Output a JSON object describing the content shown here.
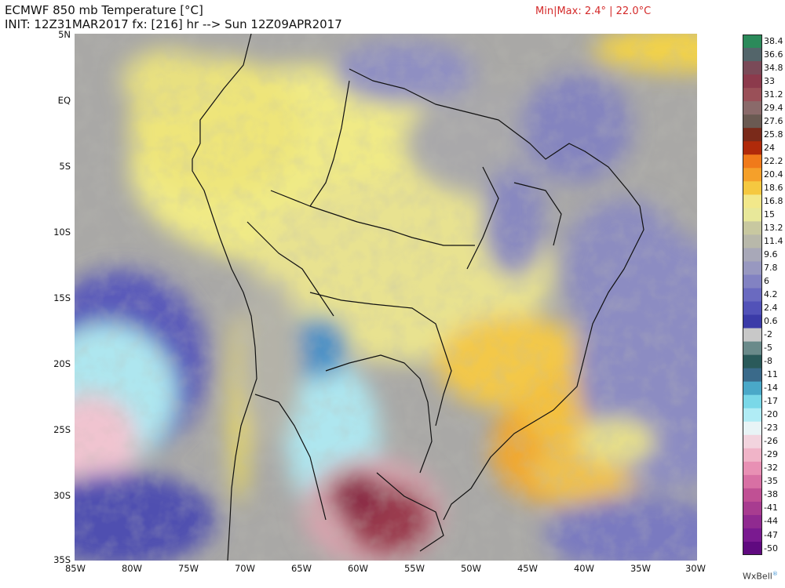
{
  "header": {
    "title": "ECMWF 850 mb Temperature [°C]",
    "init_line": "INIT: 12Z31MAR2017 fx: [216] hr --> Sun 12Z09APR2017",
    "minmax": "Min|Max: 2.4° | 22.0°C"
  },
  "axes": {
    "lat_labels": [
      "5N",
      "EQ",
      "5S",
      "10S",
      "15S",
      "20S",
      "25S",
      "30S",
      "35S"
    ],
    "lon_labels": [
      "85W",
      "80W",
      "75W",
      "70W",
      "65W",
      "60W",
      "55W",
      "50W",
      "45W",
      "40W",
      "35W",
      "30W"
    ]
  },
  "colorbar": {
    "labels": [
      "38.4",
      "36.6",
      "34.8",
      "33",
      "31.2",
      "29.4",
      "27.6",
      "25.8",
      "24",
      "22.2",
      "20.4",
      "18.6",
      "16.8",
      "15",
      "13.2",
      "11.4",
      "9.6",
      "7.8",
      "6",
      "4.2",
      "2.4",
      "0.6",
      "-2",
      "-5",
      "-8",
      "-11",
      "-14",
      "-17",
      "-20",
      "-23",
      "-26",
      "-29",
      "-32",
      "-35",
      "-38",
      "-41",
      "-44",
      "-47",
      "-50"
    ],
    "colors": [
      "#2b8a5a",
      "#53656a",
      "#7a4a58",
      "#8c3a4c",
      "#9a5058",
      "#8a6a6a",
      "#6a5a52",
      "#7a2a1a",
      "#b02a0a",
      "#f07a1a",
      "#f5a02a",
      "#f5c840",
      "#f2e88a",
      "#e8e89a",
      "#c8c8a0",
      "#b8b8aa",
      "#a8a8b8",
      "#9898c0",
      "#8282c2",
      "#6a6ac0",
      "#5252b8",
      "#3b3ba8",
      "#c8c8c8",
      "#6a8a8a",
      "#2a5a5a",
      "#3a6a8a",
      "#4aa8c8",
      "#7ad8e8",
      "#b0ecf5",
      "#e8f4f6",
      "#f2d4de",
      "#f0b4c8",
      "#e890b4",
      "#d870a4",
      "#c05094",
      "#a83c90",
      "#902a90",
      "#7a1a90",
      "#600a80"
    ]
  },
  "credit": "WxBell",
  "credit_mark": "®"
}
